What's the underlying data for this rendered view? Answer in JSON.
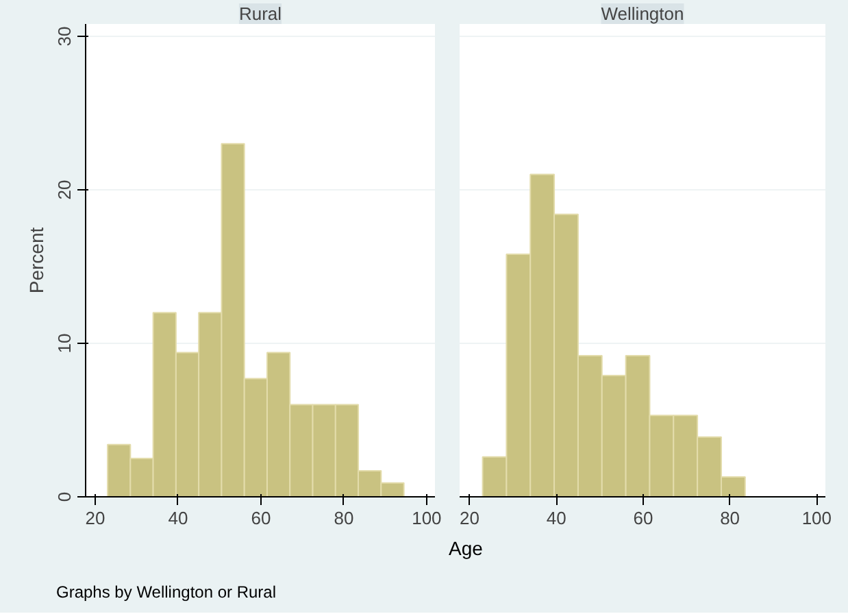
{
  "chart_data": [
    {
      "type": "histogram",
      "title": "Rural",
      "ylabel": "Percent",
      "xlabel": "Age",
      "annotations": [
        "Graphs by Wellington or Rural"
      ],
      "color": "#c9c281",
      "bins": [
        23,
        28.5,
        34,
        39.5,
        45,
        50.5,
        56,
        61.5,
        67,
        72.5,
        78,
        83.5,
        89,
        94.5
      ],
      "values": [
        3.4,
        2.5,
        12,
        9.4,
        12,
        23,
        7.7,
        9.4,
        6,
        6,
        6,
        1.7,
        0.9
      ],
      "xlim": [
        17.7,
        102
      ],
      "ylim": [
        0,
        30.8
      ],
      "xticks": [
        20,
        40,
        60,
        80,
        100
      ],
      "yticks": [
        0,
        10,
        20,
        30
      ],
      "grid": "y"
    },
    {
      "type": "histogram",
      "title": "Wellington",
      "color": "#c9c281",
      "bins": [
        23,
        28.5,
        34,
        39.5,
        45,
        50.5,
        56,
        61.5,
        67,
        72.5,
        78,
        83.5
      ],
      "values": [
        2.6,
        15.8,
        21,
        18.4,
        9.2,
        7.9,
        9.2,
        5.3,
        5.3,
        3.9,
        1.3
      ],
      "xlim": [
        17.7,
        102
      ],
      "ylim": [
        0,
        30.8
      ],
      "xticks": [
        20,
        40,
        60,
        80,
        100
      ],
      "yticks": [
        0,
        10,
        20,
        30
      ],
      "grid": "y",
      "tick_labels": "x"
    }
  ]
}
